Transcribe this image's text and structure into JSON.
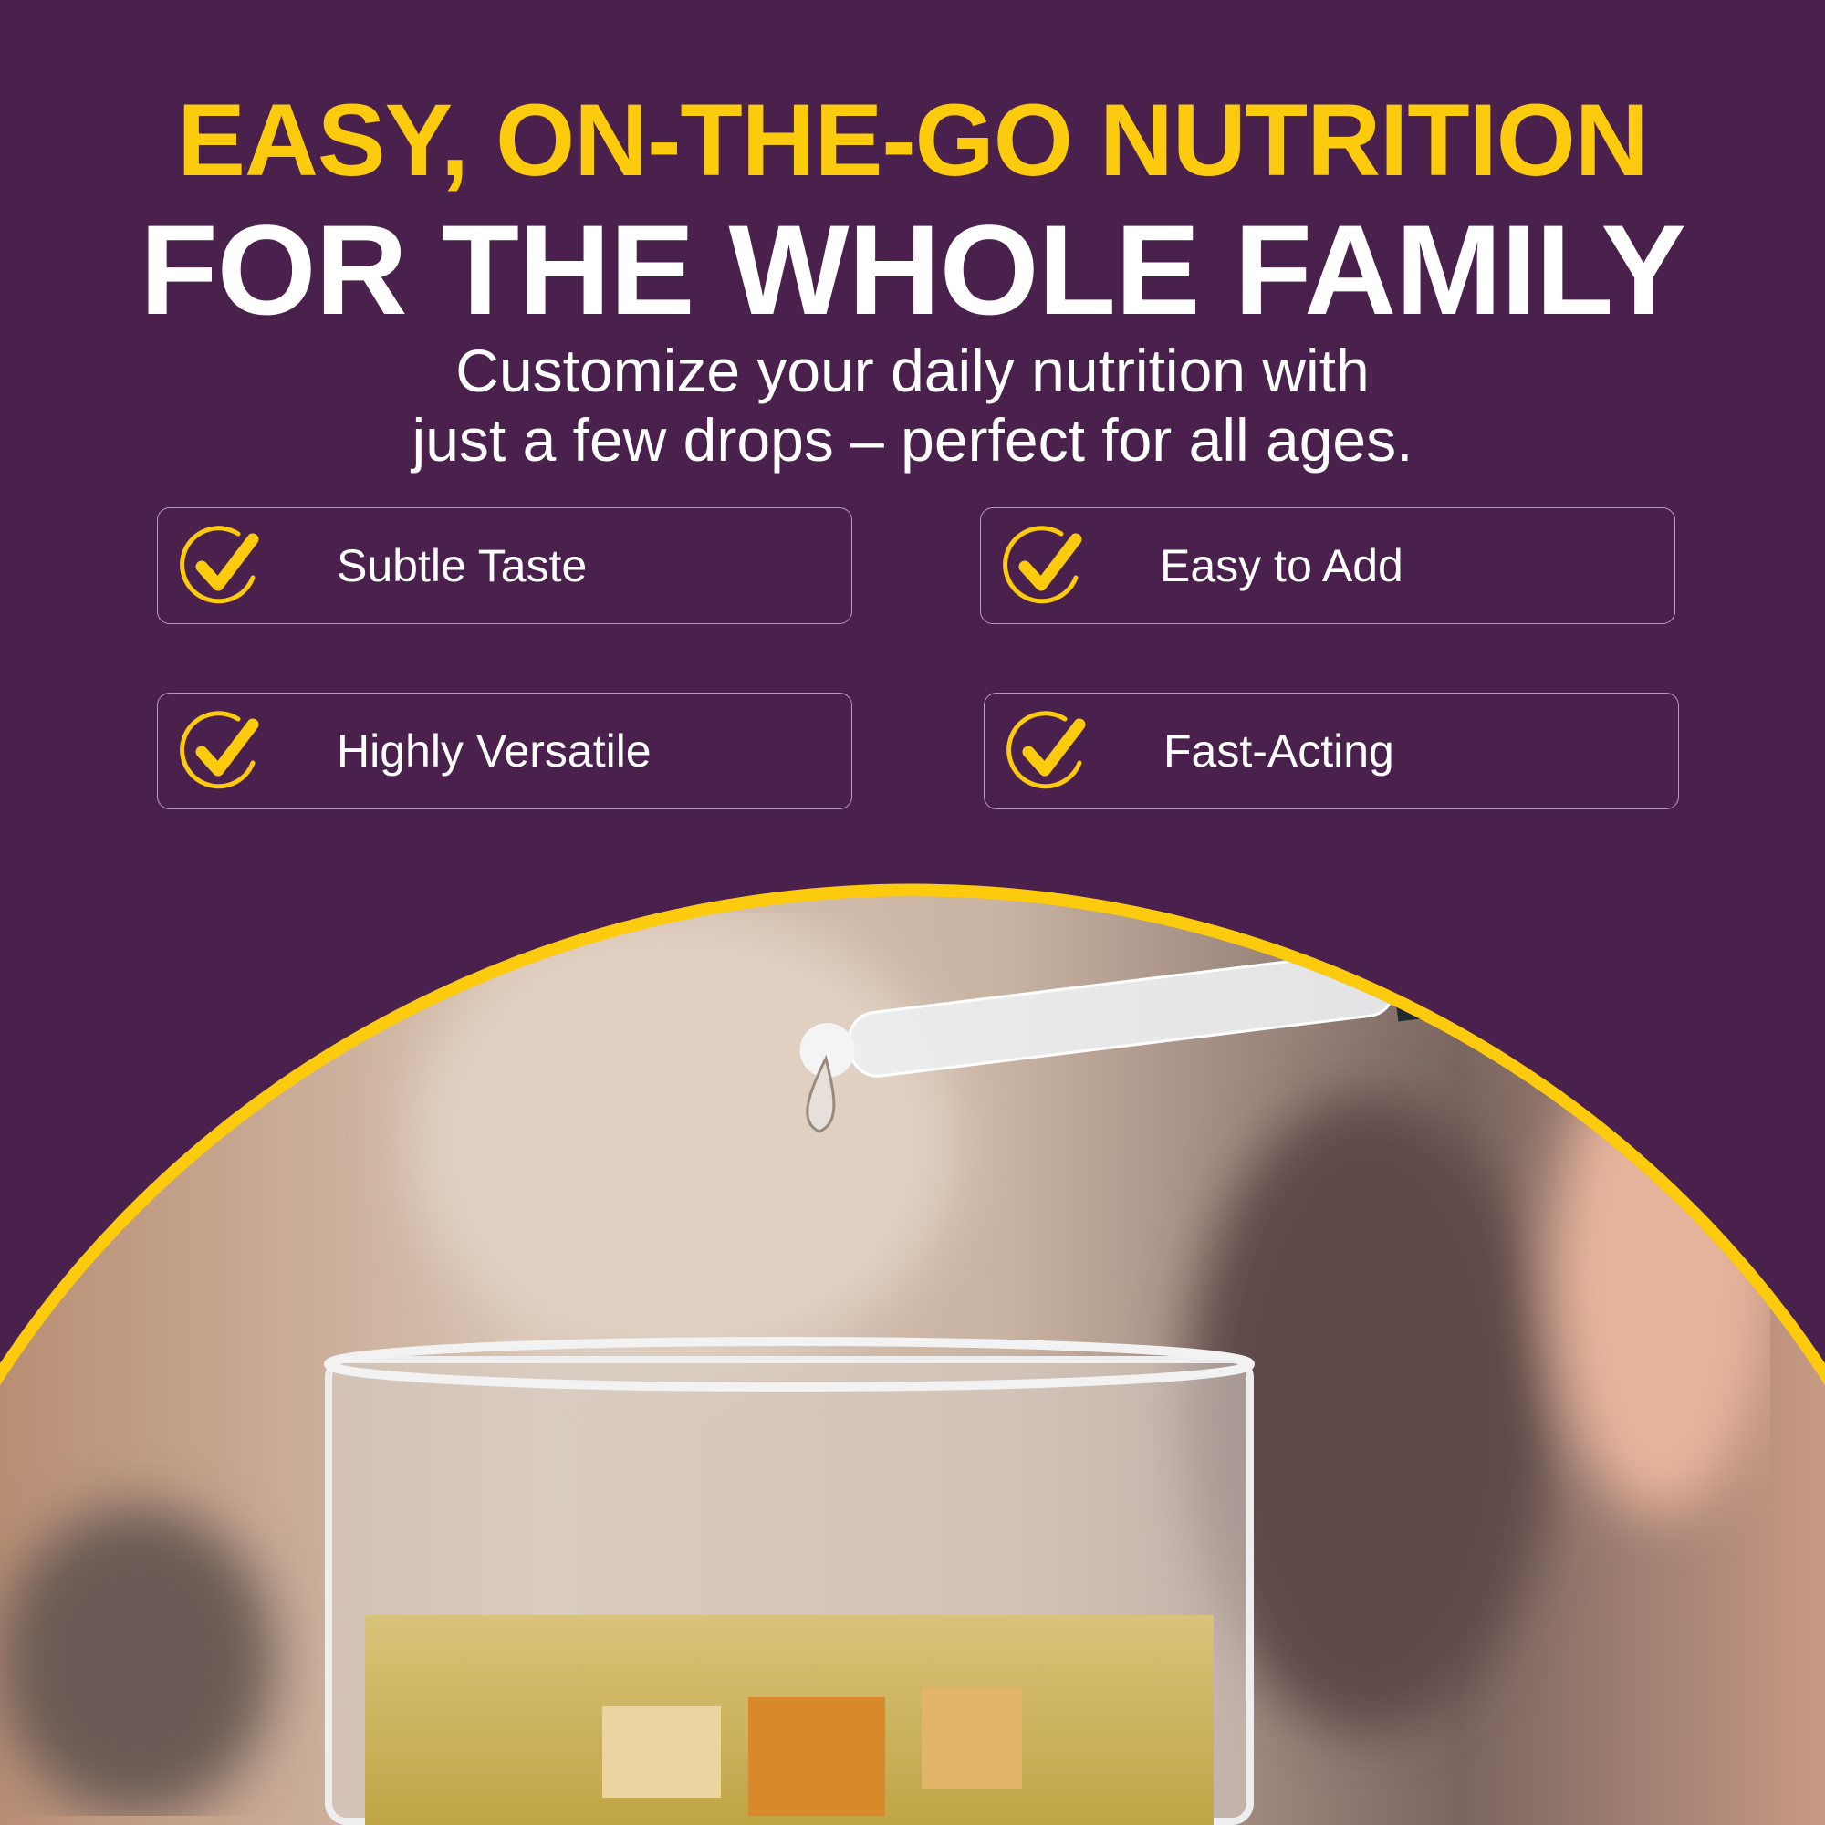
{
  "headline": {
    "line1": "EASY, ON-THE-GO NUTRITION",
    "line2": "FOR THE WHOLE FAMILY"
  },
  "subtitle": {
    "line1": "Customize your daily nutrition with",
    "line2": "just a few drops – perfect for all ages."
  },
  "features": [
    {
      "label": "Subtle Taste",
      "icon": "check-circle-icon"
    },
    {
      "label": "Easy to Add",
      "icon": "check-circle-icon"
    },
    {
      "label": "Highly Versatile",
      "icon": "check-circle-icon"
    },
    {
      "label": "Fast-Acting",
      "icon": "check-circle-icon"
    }
  ],
  "colors": {
    "background": "#4a214d",
    "accent": "#fccb0e",
    "text": "#ffffff"
  }
}
